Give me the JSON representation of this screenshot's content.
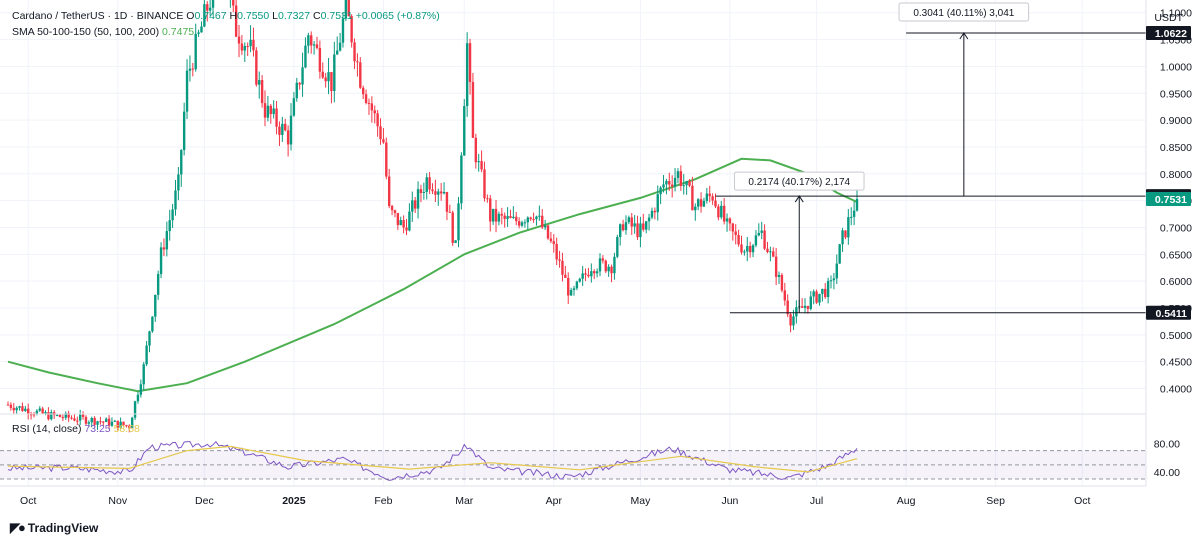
{
  "header": {
    "symbol": "Cardano / TetherUS · 1D · BINANCE",
    "open_label": "O",
    "open": "0.7467",
    "high_label": "H",
    "high": "0.7550",
    "low_label": "L",
    "low": "0.7327",
    "close_label": "C",
    "close": "0.7531",
    "change": "+0.0065 (+0.87%)",
    "sma_label": "SMA 50-100-150 (50, 100, 200)",
    "sma_value": "0.7475",
    "currency": "USDT"
  },
  "rsi": {
    "label": "RSI (14, close)",
    "value1": "73.25",
    "value2": "58.68",
    "ticks": [
      "80.00",
      "40.00"
    ]
  },
  "logo": {
    "text": "TradingView",
    "icon": "tradingview-logo-icon"
  },
  "colors": {
    "up": "#089981",
    "down": "#f23645",
    "sma": "#4caf50",
    "rsi": "#7e57c2",
    "rsi_ma": "#e6c84b",
    "badge": "#131722"
  },
  "chart_data": {
    "type": "candlestick",
    "title": "Cardano / TetherUS · 1D · BINANCE",
    "ylim": [
      0.36,
      1.12
    ],
    "ticks_y": [
      0.4,
      0.45,
      0.5,
      0.55,
      0.6,
      0.65,
      0.7,
      0.75,
      0.8,
      0.85,
      0.9,
      0.95,
      1.0,
      1.05,
      1.1
    ],
    "tick_labels_y": [
      "0.4000",
      "0.4500",
      "0.5000",
      "0.5500",
      "0.6000",
      "0.6500",
      "0.7000",
      "0.7500",
      "0.8000",
      "0.8500",
      "0.9000",
      "0.9500",
      "1.0000",
      "1.0500",
      "1.1000"
    ],
    "x_labels": [
      {
        "label": "Oct",
        "date": "2024-10-01"
      },
      {
        "label": "Nov",
        "date": "2024-11-01"
      },
      {
        "label": "Dec",
        "date": "2024-12-01"
      },
      {
        "label": "2025",
        "date": "2025-01-01"
      },
      {
        "label": "Feb",
        "date": "2025-02-01"
      },
      {
        "label": "Mar",
        "date": "2025-03-01"
      },
      {
        "label": "Apr",
        "date": "2025-04-01"
      },
      {
        "label": "May",
        "date": "2025-05-01"
      },
      {
        "label": "Jun",
        "date": "2025-06-01"
      },
      {
        "label": "Jul",
        "date": "2025-07-01"
      },
      {
        "label": "Aug",
        "date": "2025-08-01"
      },
      {
        "label": "Sep",
        "date": "2025-09-01"
      },
      {
        "label": "Oct",
        "date": "2025-10-01"
      }
    ],
    "price_keypoints": [
      {
        "date": "2024-09-24",
        "price": 0.37
      },
      {
        "date": "2024-10-08",
        "price": 0.35
      },
      {
        "date": "2024-10-25",
        "price": 0.34
      },
      {
        "date": "2024-11-05",
        "price": 0.33
      },
      {
        "date": "2024-11-10",
        "price": 0.44
      },
      {
        "date": "2024-11-16",
        "price": 0.65
      },
      {
        "date": "2024-11-22",
        "price": 0.78
      },
      {
        "date": "2024-11-25",
        "price": 0.98
      },
      {
        "date": "2024-12-02",
        "price": 1.11
      },
      {
        "date": "2024-12-07",
        "price": 1.18
      },
      {
        "date": "2024-12-12",
        "price": 1.07
      },
      {
        "date": "2024-12-17",
        "price": 1.03
      },
      {
        "date": "2024-12-22",
        "price": 0.92
      },
      {
        "date": "2024-12-30",
        "price": 0.87
      },
      {
        "date": "2025-01-06",
        "price": 1.06
      },
      {
        "date": "2025-01-14",
        "price": 0.97
      },
      {
        "date": "2025-01-19",
        "price": 1.11
      },
      {
        "date": "2025-01-24",
        "price": 0.98
      },
      {
        "date": "2025-02-01",
        "price": 0.86
      },
      {
        "date": "2025-02-03",
        "price": 0.73
      },
      {
        "date": "2025-02-08",
        "price": 0.7
      },
      {
        "date": "2025-02-16",
        "price": 0.79
      },
      {
        "date": "2025-02-22",
        "price": 0.77
      },
      {
        "date": "2025-02-26",
        "price": 0.66
      },
      {
        "date": "2025-03-02",
        "price": 1.04
      },
      {
        "date": "2025-03-04",
        "price": 0.86
      },
      {
        "date": "2025-03-10",
        "price": 0.72
      },
      {
        "date": "2025-03-18",
        "price": 0.71
      },
      {
        "date": "2025-03-25",
        "price": 0.73
      },
      {
        "date": "2025-04-01",
        "price": 0.66
      },
      {
        "date": "2025-04-07",
        "price": 0.57
      },
      {
        "date": "2025-04-14",
        "price": 0.63
      },
      {
        "date": "2025-04-21",
        "price": 0.63
      },
      {
        "date": "2025-04-25",
        "price": 0.71
      },
      {
        "date": "2025-05-02",
        "price": 0.69
      },
      {
        "date": "2025-05-09",
        "price": 0.78
      },
      {
        "date": "2025-05-14",
        "price": 0.8
      },
      {
        "date": "2025-05-20",
        "price": 0.74
      },
      {
        "date": "2025-05-26",
        "price": 0.76
      },
      {
        "date": "2025-05-31",
        "price": 0.7
      },
      {
        "date": "2025-06-06",
        "price": 0.66
      },
      {
        "date": "2025-06-12",
        "price": 0.69
      },
      {
        "date": "2025-06-17",
        "price": 0.62
      },
      {
        "date": "2025-06-22",
        "price": 0.53
      },
      {
        "date": "2025-06-28",
        "price": 0.56
      },
      {
        "date": "2025-07-03",
        "price": 0.58
      },
      {
        "date": "2025-07-06",
        "price": 0.59
      },
      {
        "date": "2025-07-10",
        "price": 0.68
      },
      {
        "date": "2025-07-14",
        "price": 0.74
      },
      {
        "date": "2025-07-15",
        "price": 0.7531
      }
    ],
    "sma_200": [
      {
        "date": "2024-09-24",
        "value": 0.45
      },
      {
        "date": "2024-10-08",
        "value": 0.43
      },
      {
        "date": "2024-10-25",
        "value": 0.41
      },
      {
        "date": "2024-11-08",
        "value": 0.395
      },
      {
        "date": "2024-11-25",
        "value": 0.41
      },
      {
        "date": "2024-12-15",
        "value": 0.45
      },
      {
        "date": "2025-01-15",
        "value": 0.52
      },
      {
        "date": "2025-02-08",
        "value": 0.585
      },
      {
        "date": "2025-03-01",
        "value": 0.65
      },
      {
        "date": "2025-03-20",
        "value": 0.69
      },
      {
        "date": "2025-04-10",
        "value": 0.725
      },
      {
        "date": "2025-05-01",
        "value": 0.755
      },
      {
        "date": "2025-05-20",
        "value": 0.79
      },
      {
        "date": "2025-06-05",
        "value": 0.828
      },
      {
        "date": "2025-06-15",
        "value": 0.825
      },
      {
        "date": "2025-06-28",
        "value": 0.8
      },
      {
        "date": "2025-07-08",
        "value": 0.765
      },
      {
        "date": "2025-07-15",
        "value": 0.7475
      }
    ],
    "rsi_line": [
      {
        "date": "2024-09-24",
        "value": 45
      },
      {
        "date": "2024-10-15",
        "value": 46
      },
      {
        "date": "2024-11-05",
        "value": 40
      },
      {
        "date": "2024-11-12",
        "value": 75
      },
      {
        "date": "2024-12-03",
        "value": 80
      },
      {
        "date": "2024-12-15",
        "value": 68
      },
      {
        "date": "2024-12-30",
        "value": 47
      },
      {
        "date": "2025-01-18",
        "value": 58
      },
      {
        "date": "2025-02-03",
        "value": 32
      },
      {
        "date": "2025-02-20",
        "value": 44
      },
      {
        "date": "2025-03-02",
        "value": 77
      },
      {
        "date": "2025-03-10",
        "value": 45
      },
      {
        "date": "2025-04-07",
        "value": 33
      },
      {
        "date": "2025-04-25",
        "value": 54
      },
      {
        "date": "2025-05-12",
        "value": 73
      },
      {
        "date": "2025-05-31",
        "value": 44
      },
      {
        "date": "2025-06-22",
        "value": 32
      },
      {
        "date": "2025-07-05",
        "value": 49
      },
      {
        "date": "2025-07-15",
        "value": 73.25
      }
    ],
    "rsi_ma": [
      {
        "date": "2024-09-24",
        "value": 48
      },
      {
        "date": "2024-11-05",
        "value": 45
      },
      {
        "date": "2024-11-25",
        "value": 70
      },
      {
        "date": "2024-12-10",
        "value": 76
      },
      {
        "date": "2025-01-05",
        "value": 56
      },
      {
        "date": "2025-02-10",
        "value": 44
      },
      {
        "date": "2025-03-10",
        "value": 53
      },
      {
        "date": "2025-04-10",
        "value": 43
      },
      {
        "date": "2025-05-15",
        "value": 62
      },
      {
        "date": "2025-06-10",
        "value": 47
      },
      {
        "date": "2025-06-28",
        "value": 40
      },
      {
        "date": "2025-07-15",
        "value": 58.68
      }
    ],
    "annotations": {
      "support_price": 0.5411,
      "support_label": "0.5411",
      "resistance_price": 0.7585,
      "resistance_label": "0.7585",
      "current_price": 0.7531,
      "current_label": "0.7531",
      "target_price": 1.0622,
      "target_label": "1.0622",
      "measure1_label": "0.2174 (40.17%) 2,174",
      "measure2_label": "0.3041 (40.11%) 3,041",
      "support_start_date": "2025-06-01",
      "resistance_start_date": "2025-05-27",
      "target_start_date": "2025-08-01",
      "measure1_date": "2025-06-25",
      "measure2_date": "2025-08-21"
    }
  }
}
